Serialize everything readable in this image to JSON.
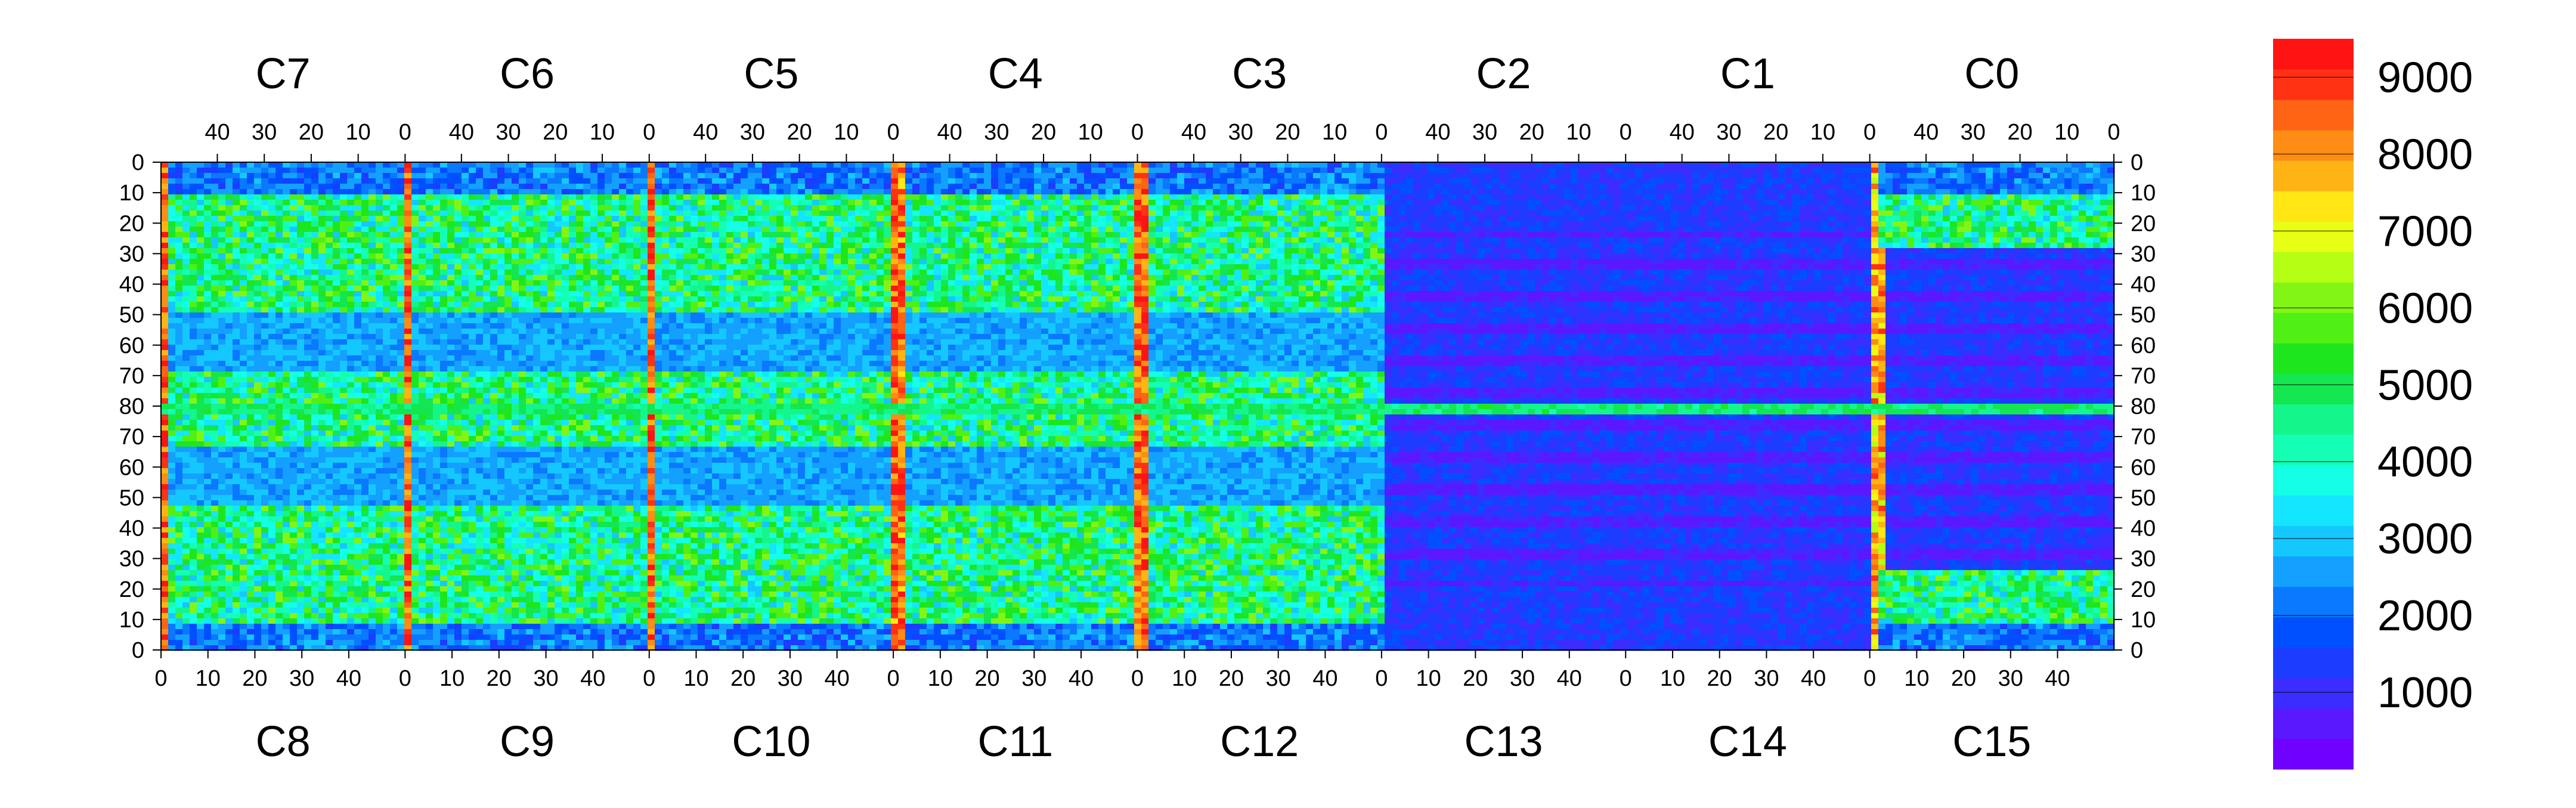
{
  "chart_data": {
    "type": "heatmap",
    "title": "",
    "xlabel": "",
    "ylabel": "",
    "cols_per_chip": 52,
    "rows_per_half": 80,
    "top_chips": [
      "C7",
      "C6",
      "C5",
      "C4",
      "C3",
      "C2",
      "C1",
      "C0"
    ],
    "bottom_chips": [
      "C8",
      "C9",
      "C10",
      "C11",
      "C12",
      "C13",
      "C14",
      "C15"
    ],
    "top_x_ticks": [
      "40",
      "30",
      "20",
      "10",
      "0"
    ],
    "bottom_x_ticks": [
      "0",
      "10",
      "20",
      "30",
      "40"
    ],
    "y_ticks": [
      "0",
      "10",
      "20",
      "30",
      "40",
      "50",
      "60",
      "70",
      "80",
      "70",
      "60",
      "50",
      "40",
      "30",
      "20",
      "10",
      "0"
    ],
    "colorbar": {
      "min": 0,
      "max": 9500,
      "tick_labels": [
        "1000",
        "2000",
        "3000",
        "4000",
        "5000",
        "6000",
        "7000",
        "8000",
        "9000"
      ],
      "colors": [
        "#7000ff",
        "#5a18ff",
        "#3b2dff",
        "#1c3cff",
        "#0050ff",
        "#0a78ff",
        "#14a0ff",
        "#14c8ff",
        "#14e6ff",
        "#14ffe6",
        "#14ffb4",
        "#14f58c",
        "#14e650",
        "#1ee61e",
        "#50f014",
        "#82f514",
        "#b4ff14",
        "#e6ff14",
        "#ffe614",
        "#ffb414",
        "#ff8c14",
        "#ff6414",
        "#ff3214",
        "#ff1414"
      ]
    },
    "structure": {
      "bright_columns_near_chip_edges": "values around 8000-9000",
      "central_row_80": "values around 4000-5000",
      "right_side_chips": "values around 500-1500 with horizontal low bands",
      "main_fill": "values around 3000-6000"
    }
  }
}
